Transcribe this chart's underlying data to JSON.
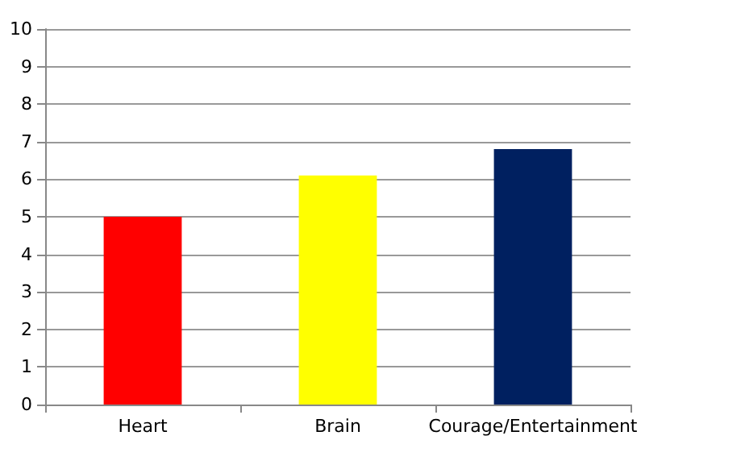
{
  "chart_data": {
    "type": "bar",
    "categories": [
      "Heart",
      "Brain",
      "Courage/Entertainment"
    ],
    "values": [
      5,
      6.1,
      6.8
    ],
    "colors": [
      "#ff0000",
      "#ffff00",
      "#002060"
    ],
    "ylim": [
      0,
      10
    ],
    "yticks": [
      0,
      1,
      2,
      3,
      4,
      5,
      6,
      7,
      8,
      9,
      10
    ],
    "grid": "y"
  }
}
